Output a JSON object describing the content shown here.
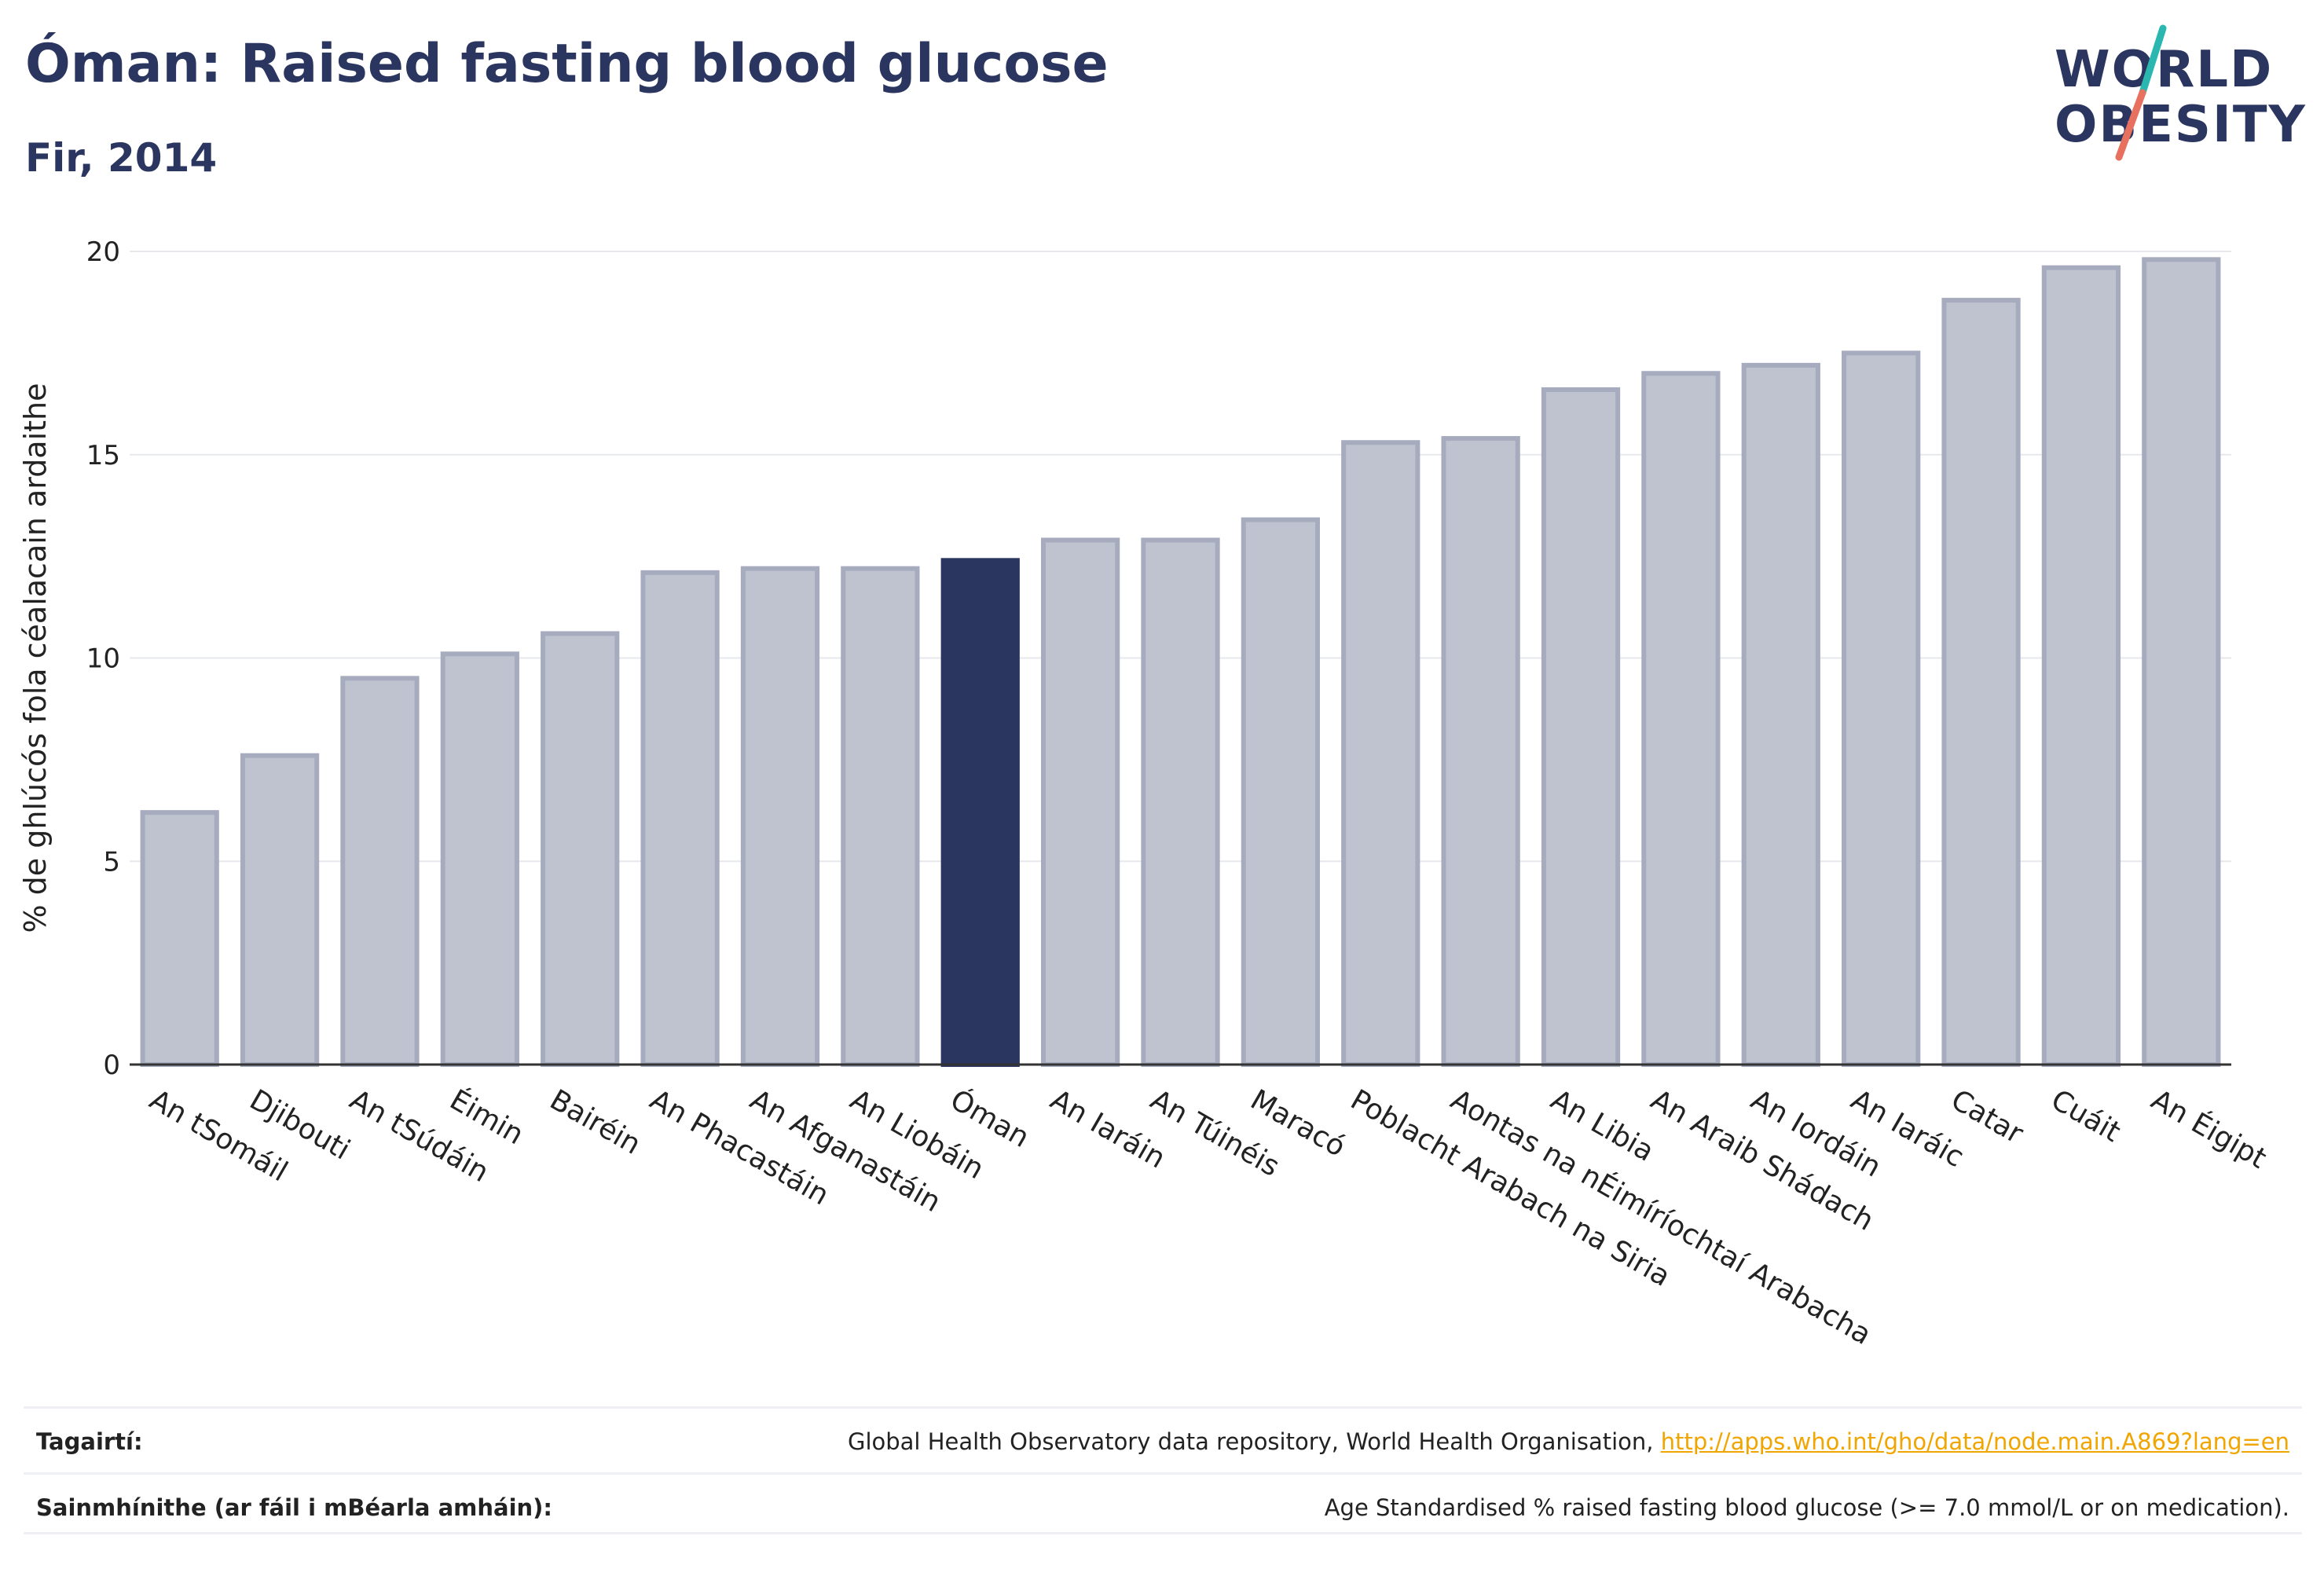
{
  "header": {
    "title": "Óman: Raised fasting blood glucose",
    "subtitle": "Fir, 2014"
  },
  "logo": {
    "line1": "WORLD",
    "line2": "OBESITY",
    "slash_colors": [
      "#2ab7b0",
      "#e8705f"
    ]
  },
  "colors": {
    "bar_default": "#bfc3d0",
    "bar_border": "#a6abbe",
    "bar_highlight": "#2b3660",
    "text_dark": "#2b3660",
    "link": "#f0a500"
  },
  "chart_data": {
    "type": "bar",
    "ylabel": "% de ghlúcós fola céalacain ardaithe",
    "ylim": [
      0,
      20
    ],
    "yticks": [
      0,
      5,
      10,
      15,
      20
    ],
    "grid": true,
    "highlight": "Óman",
    "categories": [
      "An tSomáil",
      "Djibouti",
      "An tSúdáin",
      "Éimin",
      "Bairéin",
      "An Phacastáin",
      "An Afganastáin",
      "An Liobáin",
      "Óman",
      "An Iaráin",
      "An Túinéis",
      "Maracó",
      "Poblacht Arabach na Siria",
      "Aontas na nÉimíríochtaí Arabacha",
      "An Libia",
      "An Araib Shádach",
      "An Iordáin",
      "An Iaráic",
      "Catar",
      "Cuáit",
      "An Éigipt"
    ],
    "values": [
      6.2,
      7.6,
      9.5,
      10.1,
      10.6,
      12.1,
      12.2,
      12.2,
      12.4,
      12.9,
      12.9,
      13.4,
      15.3,
      15.4,
      16.6,
      17.0,
      17.2,
      17.5,
      18.8,
      19.6,
      19.8
    ]
  },
  "footer": {
    "references_label": "Tagairtí:",
    "references_text": "Global Health Observatory data repository, World Health Organisation, ",
    "references_link": "http://apps.who.int/gho/data/node.main.A869?lang=en",
    "definitions_label": "Sainmhínithe (ar fáil i mBéarla amháin):",
    "definitions_text": "Age Standardised % raised fasting blood glucose (>= 7.0 mmol/L or on medication)."
  }
}
